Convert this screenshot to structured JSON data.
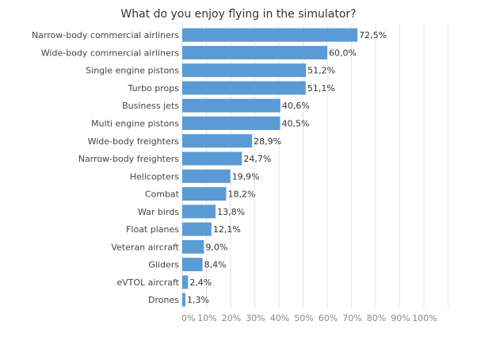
{
  "chart_data": {
    "type": "bar",
    "orientation": "horizontal",
    "title": "What do you enjoy flying in the simulator?",
    "xlabel": "",
    "ylabel": "",
    "categories": [
      "Narrow-body commercial airliners",
      "Wide-body commercial airliners",
      "Single engine pistons",
      "Turbo props",
      "Business jets",
      "Multi engine pistons",
      "Wide-body freighters",
      "Narrow-body freighters",
      "Helicopters",
      "Combat",
      "War birds",
      "Float planes",
      "Veteran aircraft",
      "Gliders",
      "eVTOL aircraft",
      "Drones"
    ],
    "values": [
      72.5,
      60.0,
      51.2,
      51.1,
      40.6,
      40.5,
      28.9,
      24.7,
      19.9,
      18.2,
      13.8,
      12.1,
      9.0,
      8.4,
      2.4,
      1.3
    ],
    "value_labels": [
      "72,5%",
      "60,0%",
      "51,2%",
      "51,1%",
      "40,6%",
      "40,5%",
      "28,9%",
      "24,7%",
      "19,9%",
      "18,2%",
      "13,8%",
      "12,1%",
      "9,0%",
      "8,4%",
      "2,4%",
      "1,3%"
    ],
    "xlim": [
      0,
      110
    ],
    "x_ticks": [
      0,
      10,
      20,
      30,
      40,
      50,
      60,
      70,
      80,
      90,
      100
    ],
    "x_tick_labels": [
      "0%",
      "10%",
      "20%",
      "30%",
      "40%",
      "50%",
      "60%",
      "70%",
      "80%",
      "90%",
      "100%"
    ],
    "grid": "vertical",
    "legend": "none",
    "bar_color": "#5b9bd5"
  }
}
